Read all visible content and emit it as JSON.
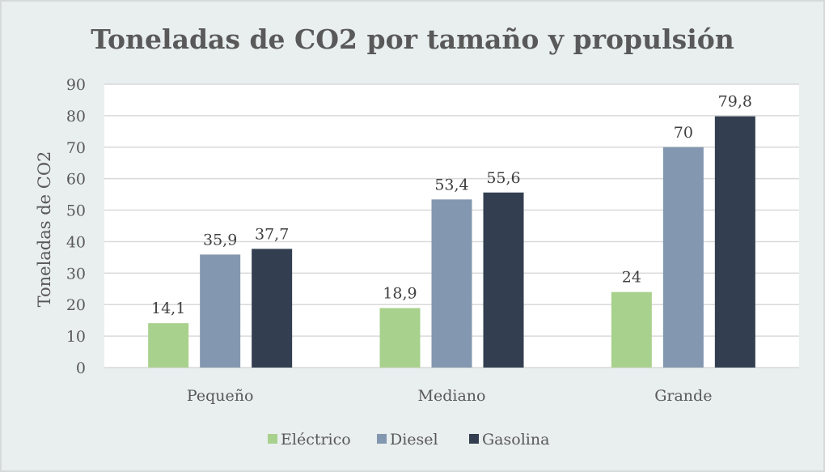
{
  "chart_data": {
    "type": "bar",
    "title": "Toneladas de CO2 por tamaño y propulsión",
    "xlabel": "",
    "ylabel": "Toneladas de CO2",
    "ylim": [
      0,
      90
    ],
    "yticks": [
      0,
      10,
      20,
      30,
      40,
      50,
      60,
      70,
      80,
      90
    ],
    "grid": true,
    "legend_position": "bottom",
    "categories": [
      "Pequeño",
      "Mediano",
      "Grande"
    ],
    "series": [
      {
        "name": "Eléctrico",
        "color": "#a9d18e",
        "values": [
          14.1,
          18.9,
          24
        ],
        "labels": [
          "14,1",
          "18,9",
          "24"
        ]
      },
      {
        "name": "Diesel",
        "color": "#8497b0",
        "values": [
          35.9,
          53.4,
          70
        ],
        "labels": [
          "35,9",
          "53,4",
          "70"
        ]
      },
      {
        "name": "Gasolina",
        "color": "#333f50",
        "values": [
          37.7,
          55.6,
          79.8
        ],
        "labels": [
          "37,7",
          "55,6",
          "79,8"
        ]
      }
    ]
  }
}
